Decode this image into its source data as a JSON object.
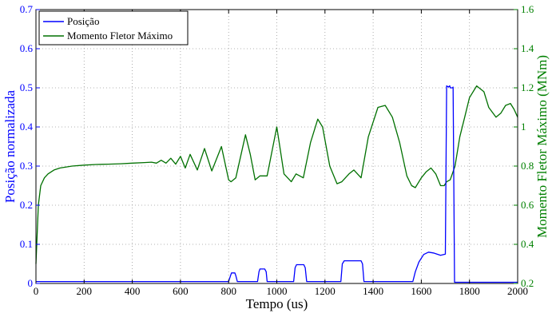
{
  "chart_data": {
    "type": "line",
    "xlabel": "Tempo (us)",
    "ylabel_left": "Posição normalizada",
    "ylabel_right": "Momento Fletor Máximo (MNm)",
    "xlim": [
      0,
      2000
    ],
    "ylim_left": [
      0,
      0.7
    ],
    "ylim_right": [
      0.2,
      1.6
    ],
    "x_ticks": [
      "0",
      "200",
      "400",
      "600",
      "800",
      "1000",
      "1200",
      "1400",
      "1600",
      "1800",
      "2000"
    ],
    "y_ticks_left": [
      "0",
      "0.1",
      "0.2",
      "0.3",
      "0.4",
      "0.5",
      "0.6",
      "0.7"
    ],
    "y_ticks_right": [
      "0.2",
      "0.4",
      "0.6",
      "0.8",
      "1",
      "1.2",
      "1.4",
      "1.6"
    ],
    "grid": true,
    "legend_position": "top-left",
    "colors": {
      "left_axis": "#0000ff",
      "right_axis": "#008000",
      "series_posicao": "#0000ff",
      "series_momento": "#007000"
    },
    "series": [
      {
        "name": "Posição",
        "axis": "left",
        "x": [
          0,
          800,
          808,
          812,
          826,
          830,
          836,
          920,
          926,
          930,
          950,
          956,
          960,
          1070,
          1076,
          1082,
          1112,
          1118,
          1124,
          1266,
          1272,
          1280,
          1350,
          1356,
          1362,
          1565,
          1575,
          1590,
          1610,
          1630,
          1650,
          1680,
          1700,
          1705,
          1712,
          1718,
          1720,
          1730,
          1732,
          1738,
          2000
        ],
        "y": [
          0.005,
          0.005,
          0.02,
          0.027,
          0.027,
          0.02,
          0.005,
          0.005,
          0.03,
          0.037,
          0.037,
          0.03,
          0.005,
          0.005,
          0.04,
          0.048,
          0.048,
          0.04,
          0.005,
          0.005,
          0.05,
          0.058,
          0.058,
          0.05,
          0.005,
          0.005,
          0.03,
          0.055,
          0.074,
          0.08,
          0.078,
          0.072,
          0.075,
          0.505,
          0.502,
          0.505,
          0.5,
          0.5,
          0.502,
          0.003,
          0.003
        ]
      },
      {
        "name": "Momento Fletor Máximo",
        "axis": "right",
        "x": [
          0,
          5,
          10,
          20,
          35,
          50,
          75,
          100,
          150,
          200,
          250,
          300,
          350,
          400,
          450,
          480,
          500,
          520,
          540,
          560,
          580,
          600,
          620,
          640,
          670,
          700,
          730,
          770,
          800,
          810,
          830,
          870,
          890,
          910,
          930,
          960,
          1000,
          1030,
          1060,
          1080,
          1110,
          1140,
          1170,
          1190,
          1220,
          1250,
          1270,
          1300,
          1320,
          1350,
          1380,
          1420,
          1450,
          1480,
          1510,
          1540,
          1560,
          1575,
          1600,
          1620,
          1640,
          1660,
          1680,
          1695,
          1705,
          1720,
          1740,
          1760,
          1780,
          1800,
          1830,
          1860,
          1880,
          1910,
          1930,
          1950,
          1970,
          1985,
          2000
        ],
        "y": [
          0.3,
          0.45,
          0.6,
          0.7,
          0.74,
          0.76,
          0.78,
          0.79,
          0.8,
          0.805,
          0.808,
          0.81,
          0.812,
          0.815,
          0.818,
          0.82,
          0.815,
          0.83,
          0.815,
          0.84,
          0.81,
          0.85,
          0.79,
          0.86,
          0.78,
          0.89,
          0.775,
          0.9,
          0.73,
          0.72,
          0.74,
          0.96,
          0.86,
          0.73,
          0.75,
          0.75,
          1.0,
          0.76,
          0.72,
          0.76,
          0.74,
          0.92,
          1.04,
          1.0,
          0.8,
          0.71,
          0.72,
          0.76,
          0.78,
          0.74,
          0.95,
          1.1,
          1.11,
          1.05,
          0.92,
          0.75,
          0.7,
          0.69,
          0.74,
          0.77,
          0.79,
          0.76,
          0.7,
          0.7,
          0.72,
          0.73,
          0.8,
          0.95,
          1.05,
          1.15,
          1.21,
          1.18,
          1.1,
          1.05,
          1.07,
          1.11,
          1.12,
          1.09,
          1.05
        ]
      }
    ]
  }
}
